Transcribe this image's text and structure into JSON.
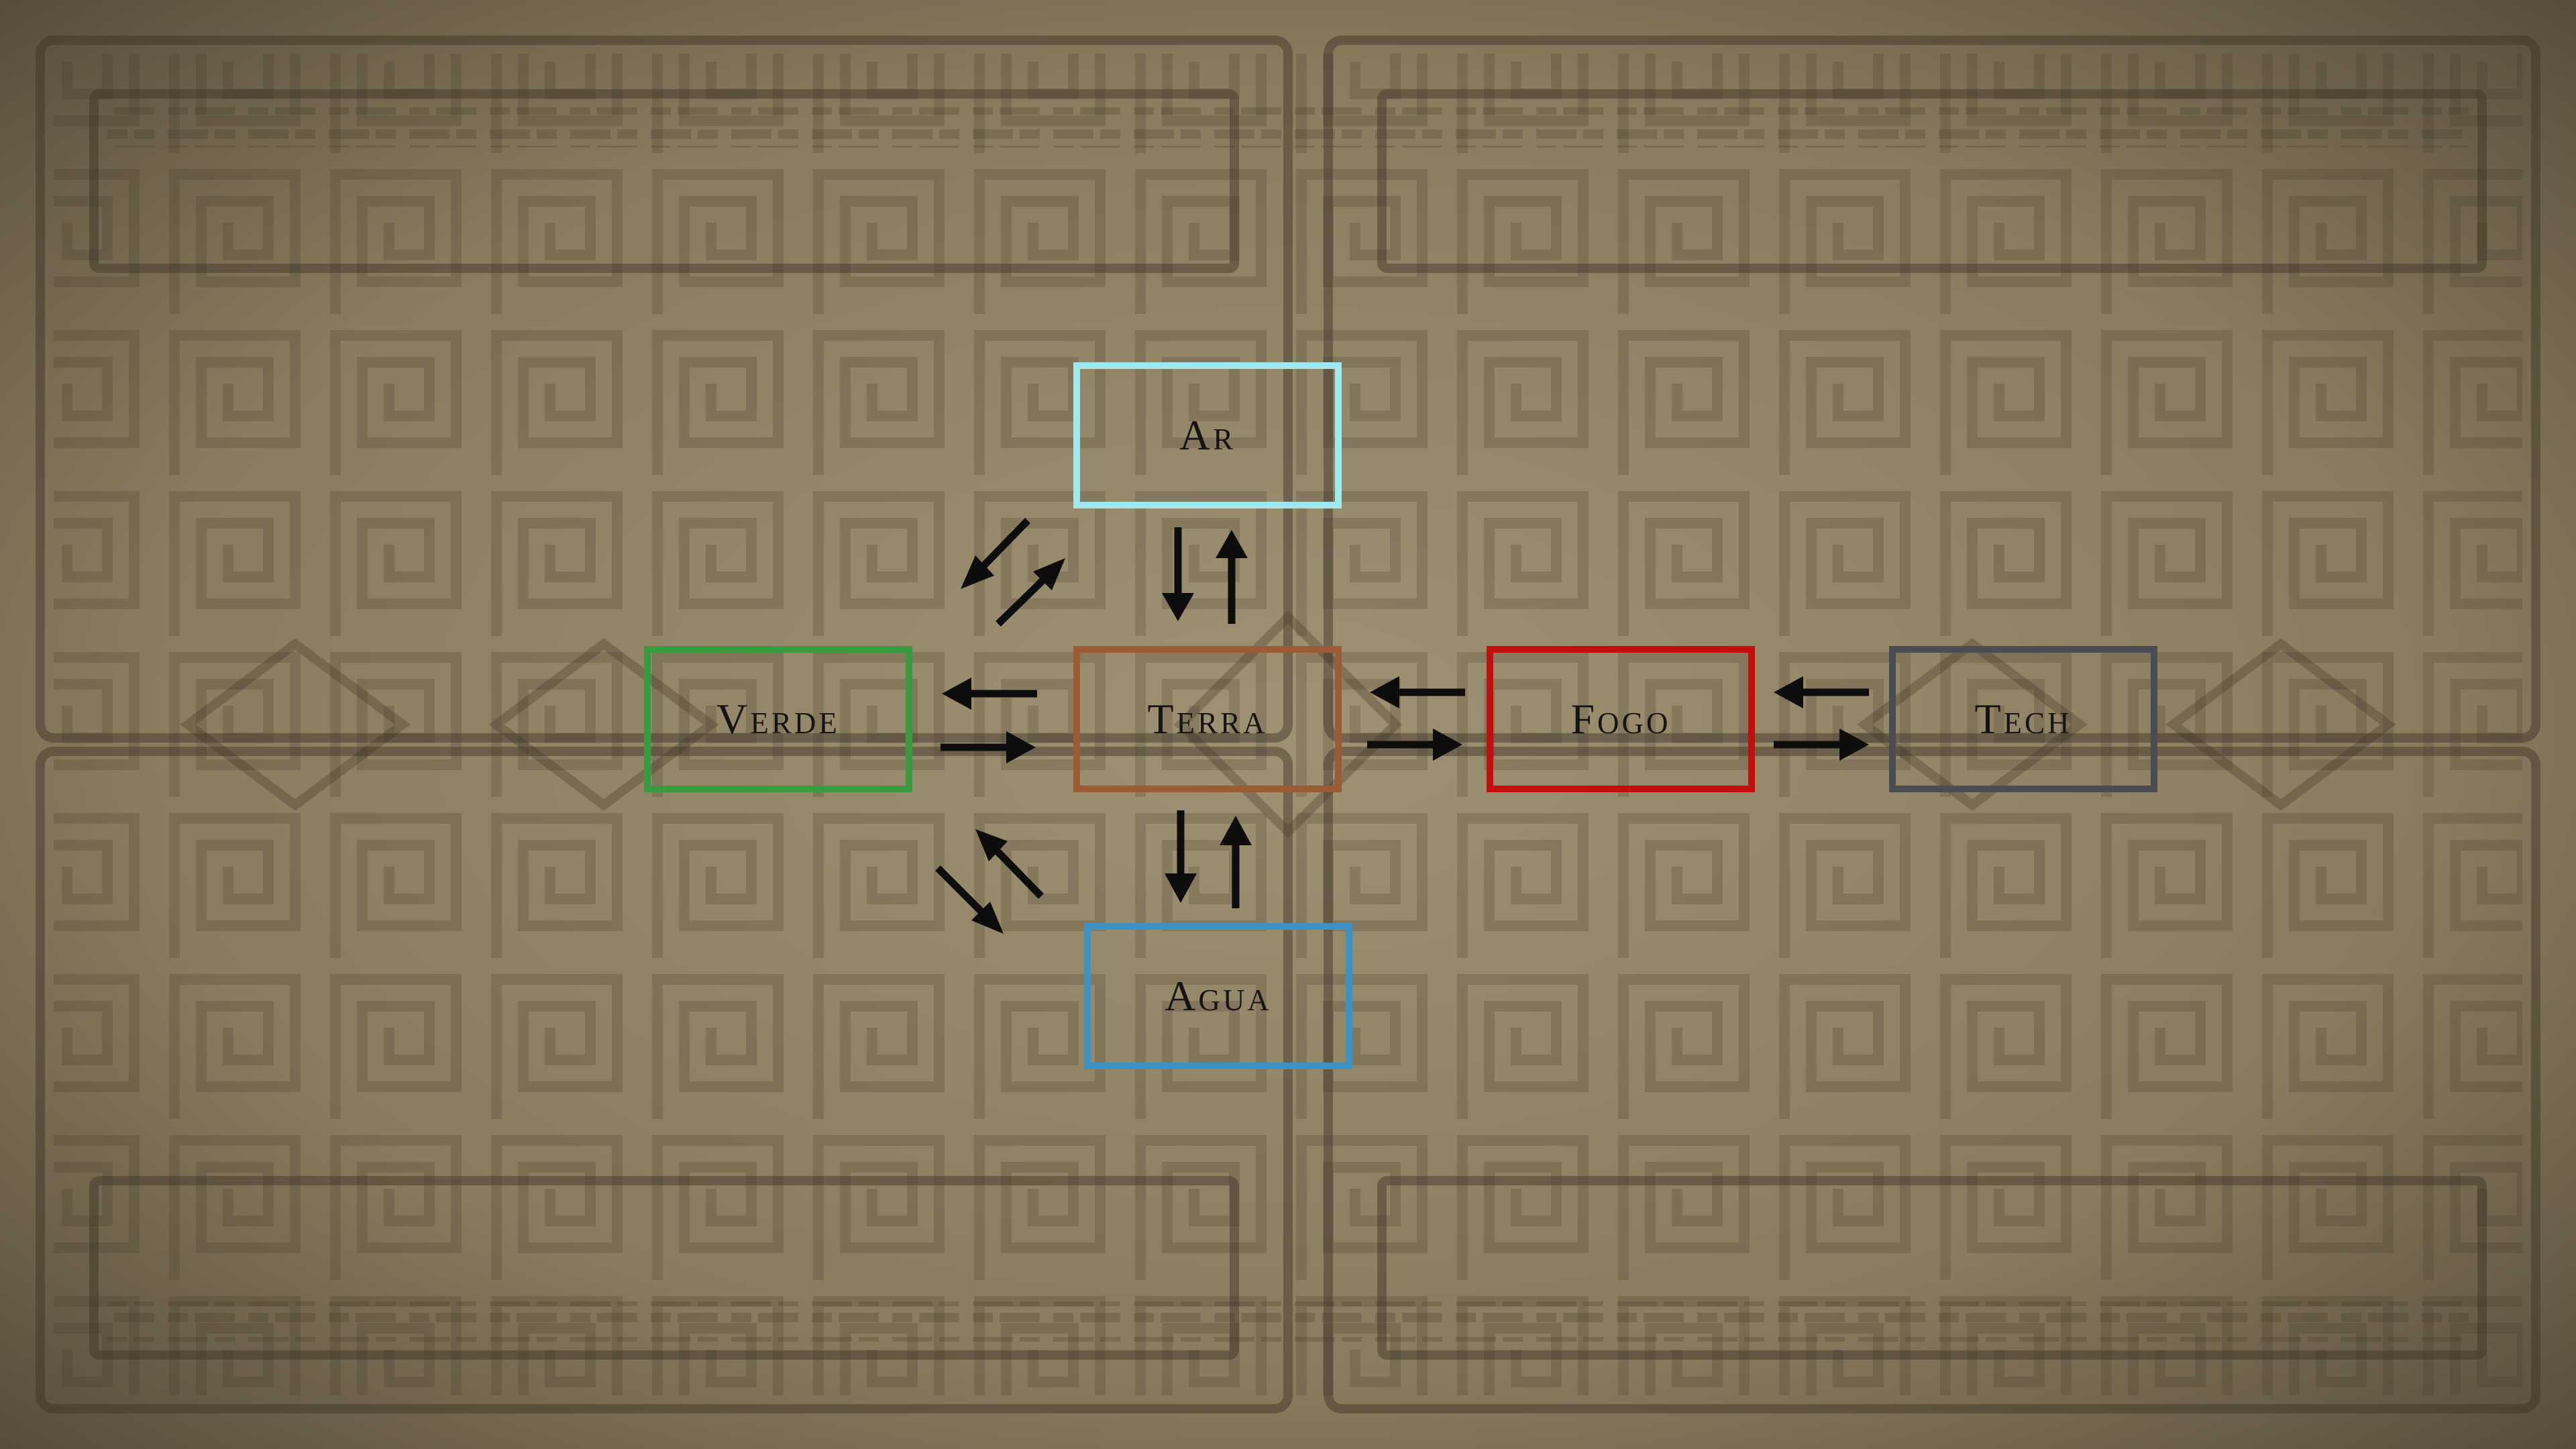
{
  "background": {
    "color": "#8e8063",
    "pattern": "aztec-meander"
  },
  "nodes": {
    "ar": {
      "label": "Ar",
      "color": "#9fe8ee"
    },
    "verde": {
      "label": "Verde",
      "color": "#3a9a3f"
    },
    "terra": {
      "label": "Terra",
      "color": "#9b5b35"
    },
    "fogo": {
      "label": "Fogo",
      "color": "#c40d0d"
    },
    "tech": {
      "label": "Tech",
      "color": "#4b4b52"
    },
    "agua": {
      "label": "Agua",
      "color": "#3e92c4"
    }
  },
  "connections": [
    {
      "between": [
        "terra",
        "ar"
      ],
      "bidirectional": true
    },
    {
      "between": [
        "terra",
        "verde"
      ],
      "bidirectional": true
    },
    {
      "between": [
        "terra",
        "fogo"
      ],
      "bidirectional": true
    },
    {
      "between": [
        "fogo",
        "tech"
      ],
      "bidirectional": true
    },
    {
      "between": [
        "terra",
        "agua"
      ],
      "bidirectional": true
    },
    {
      "between": [
        "verde",
        "ar"
      ],
      "bidirectional": true
    },
    {
      "between": [
        "verde",
        "agua"
      ],
      "bidirectional": true
    }
  ]
}
